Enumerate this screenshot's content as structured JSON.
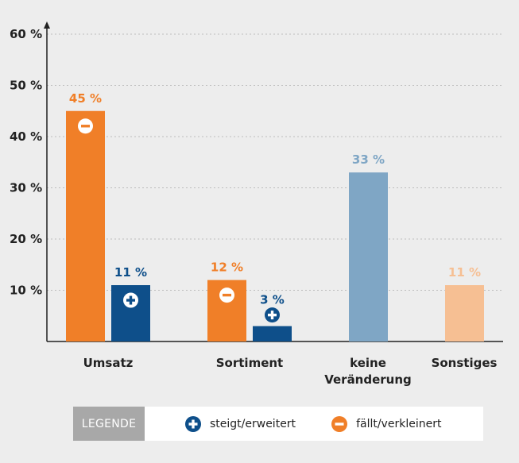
{
  "chart_data": {
    "type": "bar",
    "title": "",
    "xlabel": "",
    "ylabel": "",
    "ylim": [
      0,
      60
    ],
    "yticks": [
      10,
      20,
      30,
      40,
      50,
      60
    ],
    "ytick_labels": [
      "10 %",
      "20 %",
      "30 %",
      "40 %",
      "50 %",
      "60 %"
    ],
    "grid": true,
    "categories": [
      {
        "label_lines": [
          "Umsatz"
        ]
      },
      {
        "label_lines": [
          "Sortiment"
        ]
      },
      {
        "label_lines": [
          "keine",
          "Veränderung"
        ]
      },
      {
        "label_lines": [
          "Sonstiges"
        ]
      }
    ],
    "bars": [
      {
        "category": 0,
        "value": 45,
        "label": "45 %",
        "color": "#f07f28",
        "label_color": "#f07f28",
        "icon": "minus-circle-icon"
      },
      {
        "category": 0,
        "value": 11,
        "label": "11 %",
        "color": "#0e4f8a",
        "label_color": "#0e4f8a",
        "icon": "plus-circle-icon"
      },
      {
        "category": 1,
        "value": 12,
        "label": "12 %",
        "color": "#f07f28",
        "label_color": "#f07f28",
        "icon": "minus-circle-icon"
      },
      {
        "category": 1,
        "value": 3,
        "label": "3 %",
        "color": "#0e4f8a",
        "label_color": "#0e4f8a",
        "icon": "plus-circle-icon"
      },
      {
        "category": 2,
        "value": 33,
        "label": "33 %",
        "color": "#7fa6c5",
        "label_color": "#7fa6c5",
        "icon": ""
      },
      {
        "category": 3,
        "value": 11,
        "label": "11 %",
        "color": "#f6bf93",
        "label_color": "#f6bf93",
        "icon": ""
      }
    ]
  },
  "legend": {
    "header": "LEGENDE",
    "items": [
      {
        "label": "steigt/erweitert",
        "icon": "plus-circle-icon",
        "color": "#0e4f8a"
      },
      {
        "label": "fällt/verkleinert",
        "icon": "minus-circle-icon",
        "color": "#f07f28"
      }
    ]
  }
}
